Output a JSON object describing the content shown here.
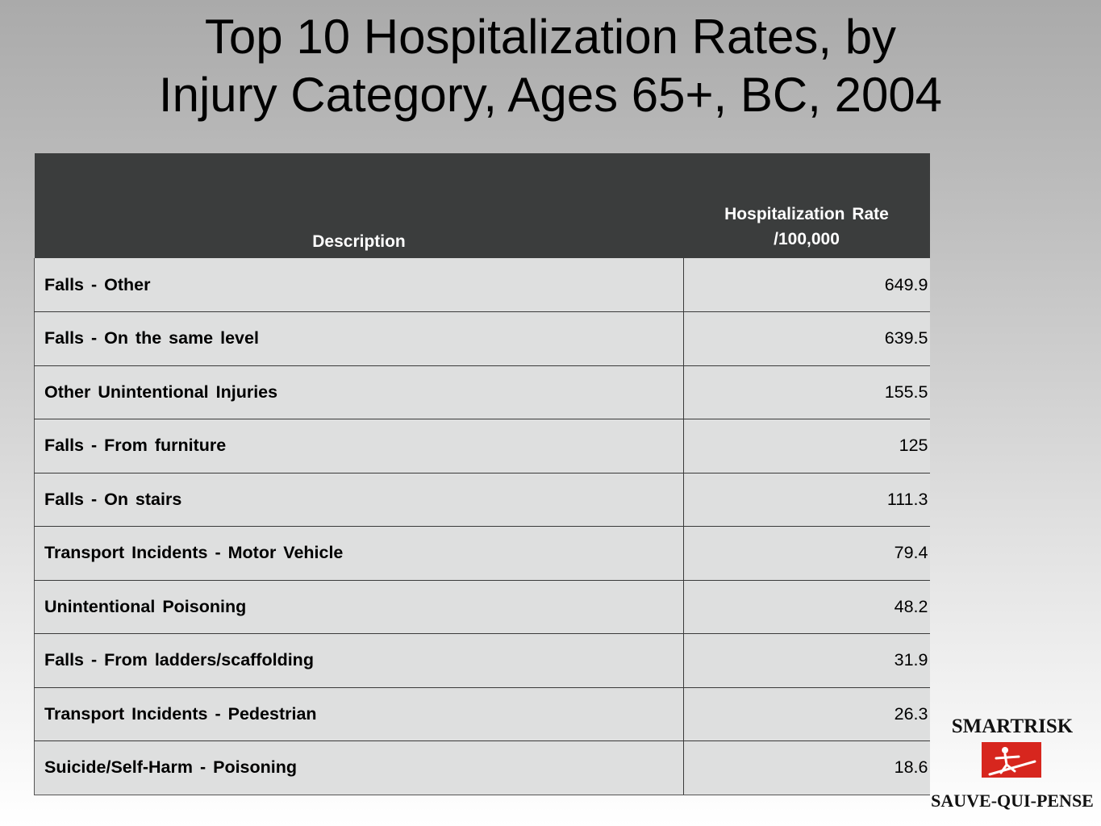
{
  "slide": {
    "title_line1": "Top 10 Hospitalization Rates, by",
    "title_line2": "Injury Category,  Ages 65+, BC, 2004"
  },
  "table": {
    "headers": {
      "description": "Description",
      "rate_line1": "Hospitalization Rate",
      "rate_line2": "/100,000"
    },
    "rows": [
      {
        "description": "Falls - Other",
        "rate": "649.9"
      },
      {
        "description": "Falls - On the same level",
        "rate": "639.5"
      },
      {
        "description": "Other Unintentional Injuries",
        "rate": "155.5"
      },
      {
        "description": "Falls - From furniture",
        "rate": "125"
      },
      {
        "description": "Falls - On stairs",
        "rate": "111.3"
      },
      {
        "description": "Transport Incidents - Motor Vehicle",
        "rate": "79.4"
      },
      {
        "description": "Unintentional Poisoning",
        "rate": "48.2"
      },
      {
        "description": "Falls - From ladders/scaffolding",
        "rate": "31.9"
      },
      {
        "description": "Transport Incidents - Pedestrian",
        "rate": "26.3"
      },
      {
        "description": "Suicide/Self-Harm - Poisoning",
        "rate": "18.6"
      }
    ]
  },
  "logo": {
    "top_text": "SMARTRISK",
    "bottom_text": "SAUVE-QUI-PENSE",
    "accent_color": "#d7261e"
  }
}
